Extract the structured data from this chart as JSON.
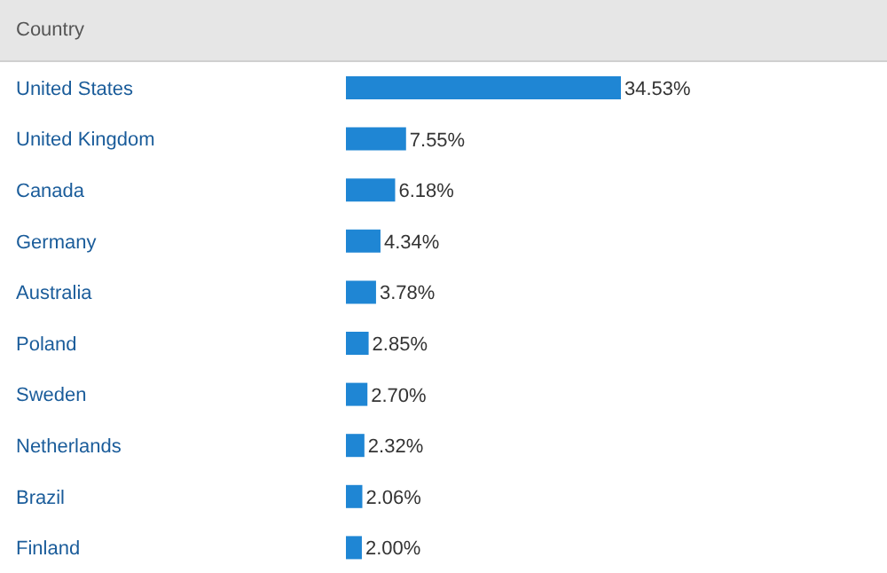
{
  "chart_data": {
    "type": "bar",
    "orientation": "horizontal",
    "ylabel": "Country",
    "categories": [
      "United States",
      "United Kingdom",
      "Canada",
      "Germany",
      "Australia",
      "Poland",
      "Sweden",
      "Netherlands",
      "Brazil",
      "Finland"
    ],
    "values": [
      34.53,
      7.55,
      6.18,
      4.34,
      3.78,
      2.85,
      2.7,
      2.32,
      2.06,
      2.0
    ],
    "value_labels": [
      "34.53%",
      "7.55%",
      "6.18%",
      "4.34%",
      "3.78%",
      "2.85%",
      "2.70%",
      "2.32%",
      "2.06%",
      "2.00%"
    ],
    "color": "#1f86d4",
    "grid": false,
    "legend": false
  }
}
